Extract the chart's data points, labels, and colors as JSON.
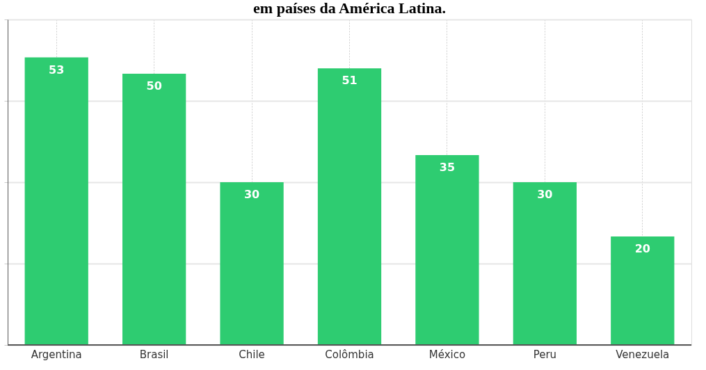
{
  "chart_data": {
    "type": "bar",
    "title": "em países da América Latina.",
    "categories": [
      "Argentina",
      "Brasil",
      "Chile",
      "Colômbia",
      "México",
      "Peru",
      "Venezuela"
    ],
    "values": [
      53,
      50,
      30,
      51,
      35,
      30,
      20
    ],
    "color": "#2ecc71",
    "ylim": [
      0,
      60
    ],
    "yticks": [
      {
        "value": 0,
        "label": null
      },
      {
        "value": 15,
        "label": null
      },
      {
        "value": 30,
        "label": null
      },
      {
        "value": 45,
        "label": null
      },
      {
        "value": 60,
        "label": null
      }
    ],
    "tick_labels": "x",
    "grid": true,
    "data_labels": true
  }
}
